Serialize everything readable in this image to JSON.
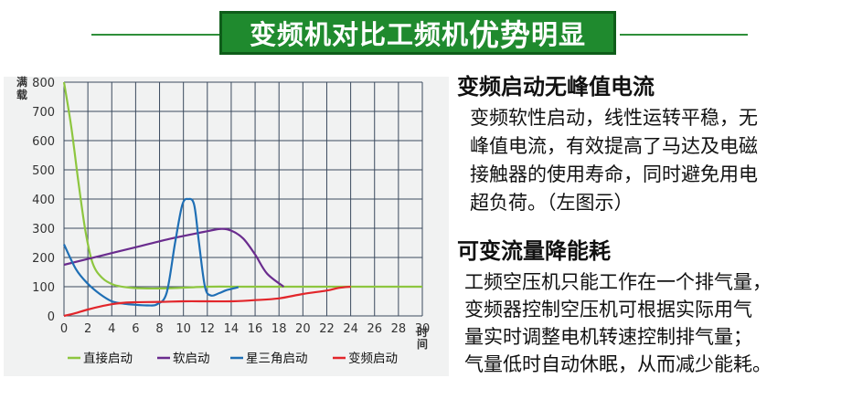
{
  "banner": {
    "title_part1": "变频机对比工频机",
    "title_part2": "优势",
    "title_part3": "明显",
    "color": "#1f8a2e"
  },
  "chart_data": {
    "type": "line",
    "ylabel": "满载",
    "xlabel": "时间",
    "xlim": [
      0,
      30
    ],
    "ylim": [
      0,
      800
    ],
    "xticks": [
      "0",
      "2",
      "4",
      "6",
      "8",
      "10",
      "12",
      "14",
      "16",
      "18",
      "20",
      "22",
      "24",
      "26",
      "28",
      "30"
    ],
    "yticks": [
      "0",
      "100",
      "200",
      "300",
      "400",
      "500",
      "600",
      "700",
      "800"
    ],
    "grid": true,
    "legend_position": "bottom",
    "series": [
      {
        "name": "直接启动",
        "color": "#8dc63f",
        "x": [
          0,
          0.6,
          1.2,
          1.8,
          2.4,
          3.2,
          4.2,
          5.5,
          7,
          9,
          12,
          15,
          18,
          20,
          24,
          30
        ],
        "y": [
          800,
          650,
          460,
          290,
          180,
          130,
          106,
          97,
          94,
          95,
          100,
          100,
          100,
          100,
          100,
          100
        ]
      },
      {
        "name": "软启动",
        "color": "#6a2c8e",
        "x": [
          0,
          3,
          6,
          9,
          12,
          13.2,
          14,
          15,
          16,
          17,
          18.4
        ],
        "y": [
          175,
          205,
          235,
          265,
          290,
          298,
          292,
          265,
          210,
          145,
          100
        ]
      },
      {
        "name": "星三角启动",
        "color": "#1f6fb5",
        "x": [
          0,
          1,
          2,
          3,
          4,
          5,
          6,
          7,
          7.8,
          8.6,
          9.3,
          9.9,
          10.4,
          10.9,
          11.3,
          11.8,
          12.3,
          13,
          13.6,
          14.6
        ],
        "y": [
          245,
          160,
          110,
          75,
          50,
          42,
          38,
          36,
          40,
          80,
          250,
          380,
          400,
          380,
          250,
          100,
          70,
          78,
          88,
          98
        ]
      },
      {
        "name": "变频启动",
        "color": "#e2262b",
        "x": [
          0,
          1,
          2,
          3,
          4,
          5,
          6,
          8,
          10,
          12,
          14,
          16,
          18,
          20,
          22,
          23,
          24
        ],
        "y": [
          0,
          10,
          22,
          32,
          40,
          45,
          47,
          48,
          50,
          50,
          50,
          54,
          60,
          75,
          87,
          96,
          100
        ]
      }
    ]
  },
  "panel": {
    "heading1": "变频启动无峰值电流",
    "body1": [
      "变频软性启动，线性运转平稳，无",
      "峰值电流，有效提高了马达及电磁",
      "接触器的使用寿命，同时避免用电",
      "超负荷。（左图示）"
    ],
    "heading2": "可变流量降能耗",
    "body2": [
      "工频空压机只能工作在一个排气量，",
      "变频器控制空压机可根据实际用气",
      "量实时调整电机转速控制排气量；",
      "气量低时自动休眠，从而减少能耗。"
    ]
  }
}
